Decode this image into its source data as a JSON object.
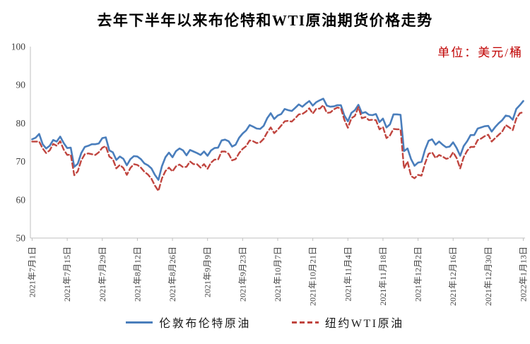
{
  "header": {
    "title": "去年下半年以来布伦特和WTI原油期货价格走势",
    "unit_label": "单位：美元/桶",
    "unit_color": "#c00000"
  },
  "legend": [
    {
      "label": "伦敦布伦特原油",
      "color": "#4a7ebc",
      "style": "solid"
    },
    {
      "label": "纽约WTI原油",
      "color": "#c0453f",
      "style": "dashed"
    }
  ],
  "chart_data": {
    "type": "line",
    "title": "去年下半年以来布伦特和WTI原油期货价格走势",
    "unit": "单位：美元/桶",
    "ylim": [
      50,
      100
    ],
    "ytick_step": 10,
    "grid": false,
    "legend_position": "bottom",
    "axis_color": "#bfbfbf",
    "x_tick_every": 10,
    "x_tick_labels": [
      "2021年7月1日",
      "2021年7月15日",
      "2021年7月29日",
      "2021年8月12日",
      "2021年8月26日",
      "2021年9月9日",
      "2021年9月23日",
      "2021年10月7日",
      "2021年10月21日",
      "2021年11月4日",
      "2021年11月18日",
      "2021年12月2日",
      "2021年12月16日",
      "2021年12月30日",
      "2022年1月13日"
    ],
    "series": [
      {
        "name": "伦敦布伦特原油",
        "color": "#4a7ebc",
        "style": "solid",
        "values": [
          75.8,
          76.2,
          77.2,
          74.5,
          73.4,
          74.1,
          75.6,
          75.2,
          76.5,
          74.8,
          73.5,
          73.6,
          68.6,
          69.4,
          72.2,
          73.8,
          74.1,
          74.5,
          74.5,
          74.7,
          76.1,
          76.3,
          72.9,
          72.4,
          70.4,
          71.3,
          70.7,
          69.0,
          70.6,
          71.4,
          71.3,
          70.6,
          69.5,
          69.0,
          68.2,
          66.5,
          65.2,
          68.8,
          71.1,
          72.3,
          71.1,
          72.7,
          73.4,
          72.9,
          71.6,
          73.0,
          72.6,
          72.2,
          71.7,
          72.6,
          71.5,
          72.9,
          73.5,
          73.6,
          75.5,
          75.7,
          75.3,
          73.9,
          74.4,
          76.2,
          77.3,
          78.1,
          79.5,
          79.1,
          78.6,
          78.5,
          79.3,
          81.3,
          82.6,
          81.1,
          82.0,
          82.4,
          83.7,
          83.4,
          83.2,
          84.0,
          84.9,
          84.3,
          85.1,
          85.8,
          84.6,
          85.5,
          86.0,
          86.4,
          84.6,
          84.3,
          84.4,
          84.7,
          84.7,
          82.0,
          80.5,
          82.7,
          83.4,
          84.8,
          82.6,
          82.9,
          82.2,
          82.1,
          82.4,
          80.3,
          81.2,
          78.9,
          79.7,
          82.3,
          82.3,
          82.2,
          72.7,
          73.4,
          70.6,
          68.9,
          69.7,
          69.9,
          73.1,
          75.4,
          75.8,
          74.4,
          75.2,
          74.4,
          73.7,
          73.9,
          75.0,
          73.5,
          71.5,
          74.0,
          75.3,
          76.9,
          76.9,
          78.6,
          78.9,
          79.2,
          79.3,
          77.8,
          79.0,
          80.0,
          80.8,
          82.0,
          81.8,
          80.9,
          83.7,
          84.7,
          85.8
        ]
      },
      {
        "name": "纽约WTI原油",
        "color": "#c0453f",
        "style": "dashed",
        "values": [
          75.2,
          75.2,
          75.2,
          73.4,
          72.2,
          72.9,
          74.6,
          74.1,
          75.3,
          73.1,
          71.7,
          71.8,
          66.4,
          67.4,
          70.3,
          71.9,
          72.1,
          71.9,
          71.7,
          72.4,
          73.6,
          74.0,
          71.3,
          70.6,
          68.2,
          69.1,
          68.3,
          66.5,
          68.3,
          69.3,
          69.1,
          68.4,
          67.3,
          66.6,
          65.5,
          63.7,
          62.3,
          65.6,
          67.5,
          68.4,
          67.4,
          68.7,
          69.2,
          68.5,
          68.6,
          70.0,
          69.3,
          69.3,
          68.4,
          69.3,
          68.1,
          69.7,
          70.5,
          70.5,
          72.6,
          72.6,
          72.0,
          70.3,
          70.6,
          72.2,
          73.3,
          74.0,
          75.5,
          75.3,
          74.8,
          75.0,
          75.9,
          77.6,
          78.9,
          77.4,
          78.3,
          79.4,
          80.5,
          80.6,
          80.4,
          81.3,
          82.3,
          82.4,
          83.0,
          83.9,
          82.5,
          83.8,
          83.8,
          84.7,
          82.7,
          82.8,
          83.6,
          84.1,
          83.9,
          80.9,
          78.8,
          81.3,
          81.9,
          84.2,
          81.3,
          81.6,
          80.8,
          80.9,
          80.8,
          78.4,
          79.0,
          76.1,
          76.8,
          78.5,
          78.4,
          78.4,
          68.2,
          70.0,
          66.2,
          65.6,
          66.5,
          66.3,
          69.5,
          72.0,
          72.4,
          70.9,
          71.7,
          71.3,
          70.7,
          70.9,
          72.4,
          70.9,
          68.2,
          71.1,
          72.8,
          73.8,
          73.8,
          75.6,
          76.0,
          76.6,
          77.0,
          75.2,
          76.1,
          77.0,
          77.8,
          79.5,
          78.9,
          78.2,
          81.2,
          82.6,
          82.9
        ]
      }
    ]
  }
}
